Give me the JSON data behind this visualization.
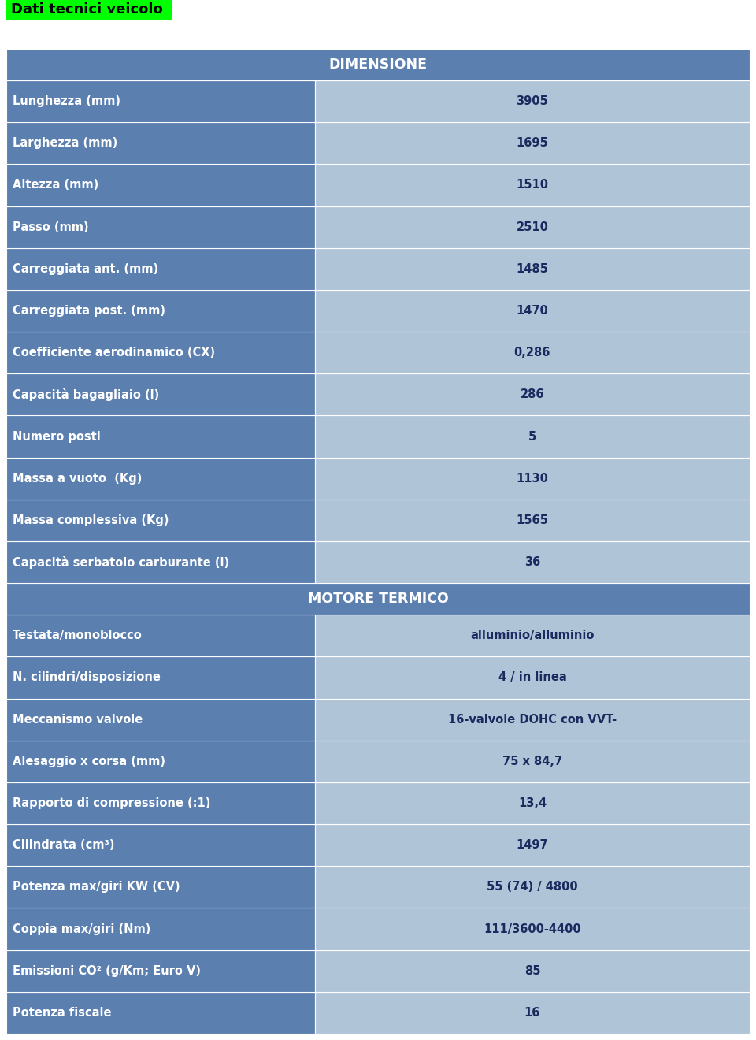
{
  "title": "Dati tecnici veicolo",
  "title_bg": "#00FF00",
  "title_color": "#000000",
  "section1_header": "DIMENSIONE",
  "section2_header": "MOTORE TERMICO",
  "header_bg": "#5b80b0",
  "header_text_color": "#FFFFFF",
  "row_bg_dark": "#5b80b0",
  "row_bg_light": "#b0c4d8",
  "row_text_color": "#FFFFFF",
  "value_text_color": "#1a2a5e",
  "col_split": 0.415,
  "rows_section1": [
    [
      "Lunghezza (mm)",
      "3905"
    ],
    [
      "Larghezza (mm)",
      "1695"
    ],
    [
      "Altezza (mm)",
      "1510"
    ],
    [
      "Passo (mm)",
      "2510"
    ],
    [
      "Carreggiata ant. (mm)",
      "1485"
    ],
    [
      "Carreggiata post. (mm)",
      "1470"
    ],
    [
      "Coefficiente aerodinamico (CX)",
      "0,286"
    ],
    [
      "Capacità bagagliaio (l)",
      "286"
    ],
    [
      "Numero posti",
      "5"
    ],
    [
      "Massa a vuoto  (Kg)",
      "1130"
    ],
    [
      "Massa complessiva (Kg)",
      "1565"
    ],
    [
      "Capacità serbatoio carburante (l)",
      "36"
    ]
  ],
  "rows_section2": [
    [
      "Testata/monoblocco",
      "alluminio/alluminio"
    ],
    [
      "N. cilindri/disposizione",
      "4 / in linea"
    ],
    [
      "Meccanismo valvole",
      "16-valvole DOHC con VVT-"
    ],
    [
      "Alesaggio x corsa (mm)",
      "75 x 84,7"
    ],
    [
      "Rapporto di compressione (:1)",
      "13,4"
    ],
    [
      "Cilindrata (cm³)",
      "1497"
    ],
    [
      "Potenza max/giri KW (CV)",
      "55 (74) / 4800"
    ],
    [
      "Coppia max/giri (Nm)",
      "111/3600-4400"
    ],
    [
      "Emissioni CO² (g/Km; Euro V)",
      "85"
    ],
    [
      "Potenza fiscale",
      "16"
    ]
  ],
  "fig_width": 9.6,
  "fig_height": 13.2,
  "dpi": 100
}
